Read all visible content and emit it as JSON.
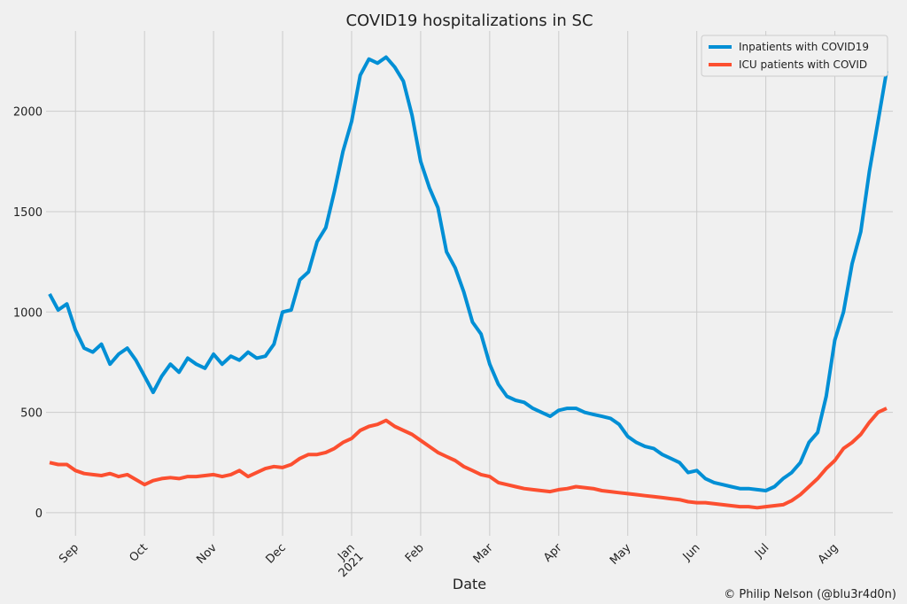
{
  "chart_data": {
    "type": "line",
    "title": "COVID19 hospitalizations in SC",
    "x_label": "Date",
    "credit": "© Philip Nelson (@blu3r4d0n)",
    "categories": [
      null,
      null,
      null,
      "Sep",
      null,
      null,
      null,
      null,
      null,
      null,
      null,
      "Oct",
      null,
      null,
      null,
      null,
      null,
      null,
      null,
      "Nov",
      null,
      null,
      null,
      null,
      null,
      null,
      null,
      "Dec",
      null,
      null,
      null,
      null,
      null,
      null,
      null,
      "Jan\n2021",
      null,
      null,
      null,
      null,
      null,
      null,
      null,
      "Feb",
      null,
      null,
      null,
      null,
      null,
      null,
      null,
      "Mar",
      null,
      null,
      null,
      null,
      null,
      null,
      null,
      "Apr",
      null,
      null,
      null,
      null,
      null,
      null,
      null,
      "May",
      null,
      null,
      null,
      null,
      null,
      null,
      null,
      "Jun",
      null,
      null,
      null,
      null,
      null,
      null,
      null,
      "Jul",
      null,
      null,
      null,
      null,
      null,
      null,
      null,
      "Aug",
      null,
      null,
      null,
      null,
      null,
      null
    ],
    "series": [
      {
        "name": "Inpatients with COVID19",
        "color": "#008fd5",
        "values": [
          1090,
          1010,
          1040,
          910,
          820,
          800,
          840,
          740,
          790,
          820,
          760,
          680,
          600,
          680,
          740,
          700,
          770,
          740,
          720,
          790,
          740,
          780,
          760,
          800,
          770,
          780,
          840,
          1000,
          1010,
          1160,
          1200,
          1350,
          1420,
          1600,
          1800,
          1950,
          2180,
          2260,
          2240,
          2270,
          2220,
          2150,
          1980,
          1750,
          1620,
          1520,
          1300,
          1220,
          1100,
          950,
          890,
          740,
          640,
          580,
          560,
          550,
          520,
          500,
          480,
          510,
          520,
          520,
          500,
          490,
          480,
          470,
          440,
          380,
          350,
          330,
          320,
          290,
          270,
          250,
          200,
          210,
          170,
          150,
          140,
          130,
          120,
          120,
          115,
          110,
          130,
          170,
          200,
          250,
          350,
          400,
          580,
          860,
          1000,
          1240,
          1400,
          1700,
          1950,
          2200
        ]
      },
      {
        "name": "ICU patients with COVID",
        "color": "#fc4f30",
        "values": [
          250,
          240,
          240,
          210,
          195,
          190,
          185,
          195,
          180,
          190,
          165,
          140,
          160,
          170,
          175,
          170,
          180,
          180,
          185,
          190,
          180,
          190,
          210,
          180,
          200,
          220,
          230,
          225,
          240,
          270,
          290,
          290,
          300,
          320,
          350,
          370,
          410,
          430,
          440,
          460,
          430,
          410,
          390,
          360,
          330,
          300,
          280,
          260,
          230,
          210,
          190,
          180,
          150,
          140,
          130,
          120,
          115,
          110,
          105,
          115,
          120,
          130,
          125,
          120,
          110,
          105,
          100,
          95,
          90,
          85,
          80,
          75,
          70,
          65,
          55,
          50,
          50,
          45,
          40,
          35,
          30,
          30,
          25,
          30,
          35,
          40,
          60,
          90,
          130,
          170,
          220,
          260,
          320,
          350,
          390,
          450,
          500,
          520
        ]
      }
    ],
    "ylim": [
      -115,
      2400
    ],
    "yticks": [
      0,
      500,
      1000,
      1500,
      2000
    ],
    "grid": true,
    "legend": "upper right"
  }
}
